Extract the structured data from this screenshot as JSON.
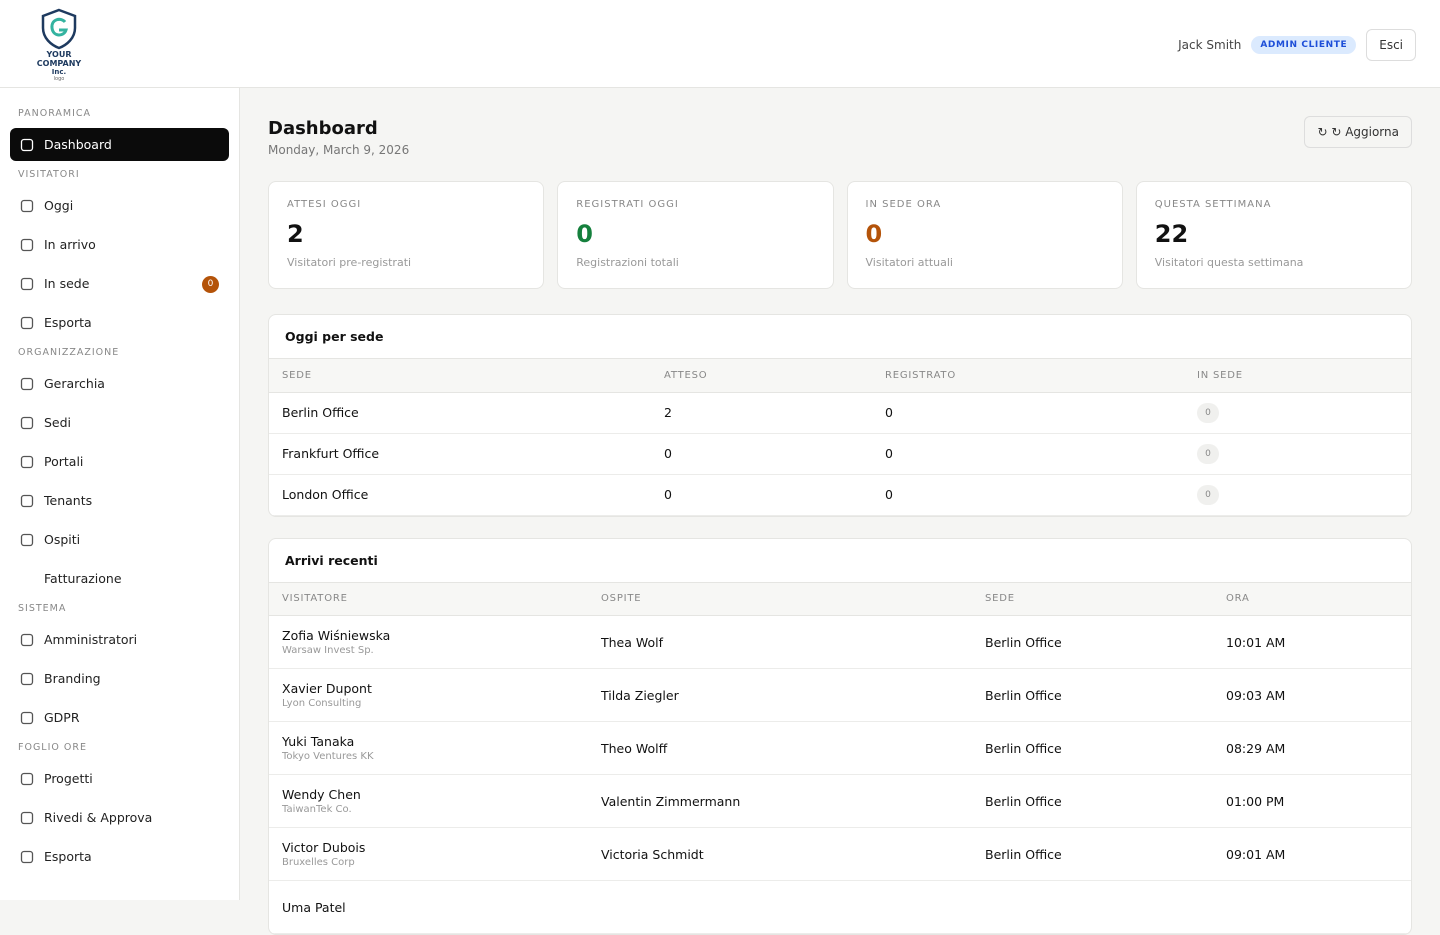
{
  "header": {
    "logo": {
      "line1": "YOUR COMPANY",
      "line2": "Inc.",
      "line3": "logo"
    },
    "user": "Jack Smith",
    "role": "ADMIN CLIENTE",
    "logout": "Esci"
  },
  "sidebar": {
    "sections": [
      {
        "title": "PANORAMICA",
        "items": [
          {
            "label": "Dashboard",
            "active": true
          }
        ]
      },
      {
        "title": "VISITATORI",
        "items": [
          {
            "label": "Oggi"
          },
          {
            "label": "In arrivo"
          },
          {
            "label": "In sede",
            "badge": 0
          },
          {
            "label": "Esporta"
          }
        ]
      },
      {
        "title": "ORGANIZZAZIONE",
        "items": [
          {
            "label": "Gerarchia"
          },
          {
            "label": "Sedi"
          },
          {
            "label": "Portali"
          },
          {
            "label": "Tenants"
          },
          {
            "label": "Ospiti"
          },
          {
            "label": "Fatturazione",
            "noicon": true
          }
        ]
      },
      {
        "title": "SISTEMA",
        "items": [
          {
            "label": "Amministratori"
          },
          {
            "label": "Branding"
          },
          {
            "label": "GDPR"
          }
        ]
      },
      {
        "title": "FOGLIO ORE",
        "items": [
          {
            "label": "Progetti"
          },
          {
            "label": "Rivedi & Approva"
          },
          {
            "label": "Esporta"
          }
        ]
      }
    ]
  },
  "page": {
    "title": "Dashboard",
    "date": "Monday, March 9, 2026",
    "refresh": "↻ ↻ Aggiorna"
  },
  "stats": [
    {
      "label": "ATTESI OGGI",
      "value": 2,
      "note": "Visitatori pre-registrati"
    },
    {
      "label": "REGISTRATI OGGI",
      "value": 0,
      "note": "Registrazioni totali"
    },
    {
      "label": "IN SEDE ORA",
      "value": 0,
      "note": "Visitatori attuali"
    },
    {
      "label": "QUESTA SETTIMANA",
      "value": 22,
      "note": "Visitatori questa settimana"
    }
  ],
  "sites_table": {
    "title": "Oggi per sede",
    "columns": [
      "SEDE",
      "ATTESO",
      "REGISTRATO",
      "IN SEDE"
    ],
    "rows": [
      [
        "Berlin Office",
        2,
        0,
        0
      ],
      [
        "Frankfurt Office",
        0,
        0,
        0
      ],
      [
        "London Office",
        0,
        0,
        0
      ]
    ]
  },
  "arrivals": {
    "title": "Arrivi recenti",
    "columns": [
      "VISITATORE",
      "OSPITE",
      "SEDE",
      "ORA"
    ],
    "rows": [
      {
        "visitor": "Zofia Wiśniewska",
        "company": "Warsaw Invest Sp.",
        "host": "Thea Wolf",
        "site": "Berlin Office",
        "time": "10:01 AM"
      },
      {
        "visitor": "Xavier Dupont",
        "company": "Lyon Consulting",
        "host": "Tilda Ziegler",
        "site": "Berlin Office",
        "time": "09:03 AM"
      },
      {
        "visitor": "Yuki Tanaka",
        "company": "Tokyo Ventures KK",
        "host": "Theo Wolff",
        "site": "Berlin Office",
        "time": "08:29 AM"
      },
      {
        "visitor": "Wendy Chen",
        "company": "TaiwanTek Co.",
        "host": "Valentin Zimmermann",
        "site": "Berlin Office",
        "time": "01:00 PM"
      },
      {
        "visitor": "Victor Dubois",
        "company": "Bruxelles Corp",
        "host": "Victoria Schmidt",
        "site": "Berlin Office",
        "time": "09:01 AM"
      },
      {
        "visitor": "Uma Patel"
      }
    ]
  }
}
